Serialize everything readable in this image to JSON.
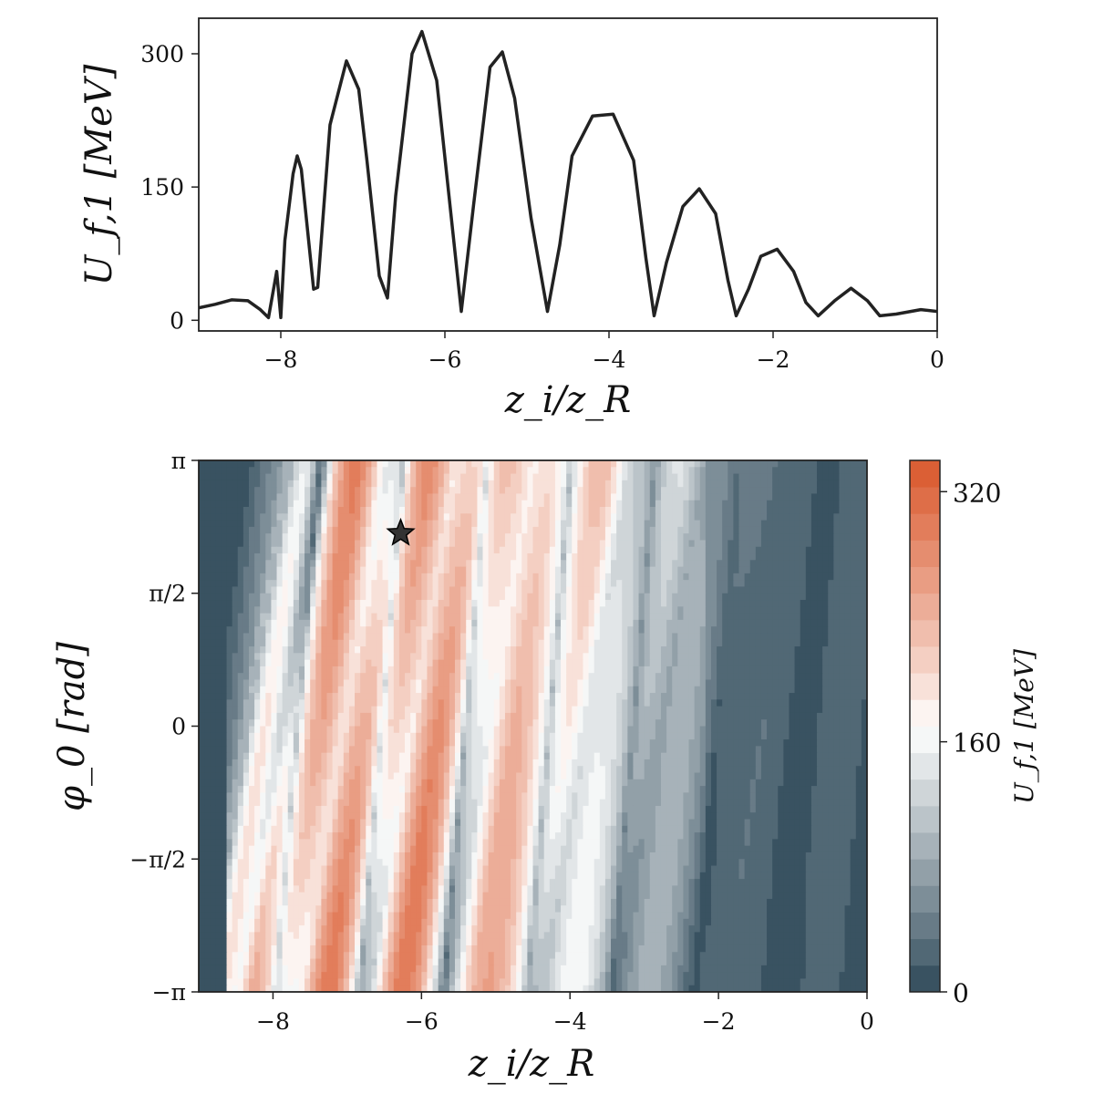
{
  "chart_data": [
    {
      "type": "line",
      "xlabel": "z_i/z_R",
      "ylabel": "U_f,1 [MeV]",
      "xlim": [
        -9,
        0
      ],
      "ylim": [
        -12,
        340
      ],
      "xticks": [
        -8,
        -6,
        -4,
        -2,
        0
      ],
      "xtick_labels": [
        "−8",
        "−6",
        "−4",
        "−2",
        "0"
      ],
      "yticks": [
        0,
        150,
        300
      ],
      "ytick_labels": [
        "0",
        "150",
        "300"
      ],
      "grid": false,
      "series": [
        {
          "color": "#222222",
          "x": [
            -9.0,
            -8.8,
            -8.6,
            -8.4,
            -8.25,
            -8.15,
            -8.05,
            -8.0,
            -7.95,
            -7.85,
            -7.8,
            -7.75,
            -7.6,
            -7.55,
            -7.4,
            -7.2,
            -7.05,
            -6.95,
            -6.8,
            -6.7,
            -6.6,
            -6.4,
            -6.28,
            -6.1,
            -5.95,
            -5.8,
            -5.65,
            -5.45,
            -5.3,
            -5.15,
            -4.95,
            -4.75,
            -4.6,
            -4.45,
            -4.2,
            -3.95,
            -3.7,
            -3.55,
            -3.45,
            -3.3,
            -3.1,
            -2.9,
            -2.7,
            -2.55,
            -2.45,
            -2.3,
            -2.15,
            -1.95,
            -1.75,
            -1.6,
            -1.45,
            -1.25,
            -1.05,
            -0.85,
            -0.7,
            -0.5,
            -0.2,
            0.0
          ],
          "y": [
            14,
            18,
            23,
            22,
            12,
            3,
            55,
            3,
            90,
            165,
            185,
            170,
            35,
            37,
            220,
            292,
            260,
            180,
            50,
            25,
            140,
            300,
            325,
            270,
            140,
            10,
            130,
            285,
            302,
            250,
            115,
            10,
            85,
            185,
            230,
            232,
            180,
            70,
            5,
            65,
            128,
            148,
            120,
            45,
            5,
            35,
            72,
            80,
            55,
            20,
            5,
            22,
            36,
            22,
            5,
            7,
            12,
            10
          ]
        }
      ]
    },
    {
      "type": "heatmap",
      "xlabel": "z_i/z_R",
      "ylabel": "φ_0 [rad]",
      "xlim": [
        -9,
        0
      ],
      "ylim": [
        -3.14159,
        3.14159
      ],
      "xticks": [
        -8,
        -6,
        -4,
        -2,
        0
      ],
      "xtick_labels": [
        "−8",
        "−6",
        "−4",
        "−2",
        "0"
      ],
      "yticks": [
        -3.14159,
        -1.5708,
        0,
        1.5708,
        3.14159
      ],
      "ytick_labels": [
        "−π",
        "−π/2",
        "0",
        "π/2",
        "π"
      ],
      "colorbar": {
        "label": "U_f,1 [MeV]",
        "ticks": [
          0,
          160,
          320
        ],
        "tick_labels": [
          "0",
          "160",
          "320"
        ],
        "range": [
          0,
          340
        ],
        "colors": {
          "low": "#2b4656",
          "mid": "#ffffff",
          "high": "#d9572b"
        }
      },
      "marker": {
        "symbol": "star",
        "x": -6.28,
        "y": 2.28,
        "color": "#333333"
      }
    }
  ]
}
